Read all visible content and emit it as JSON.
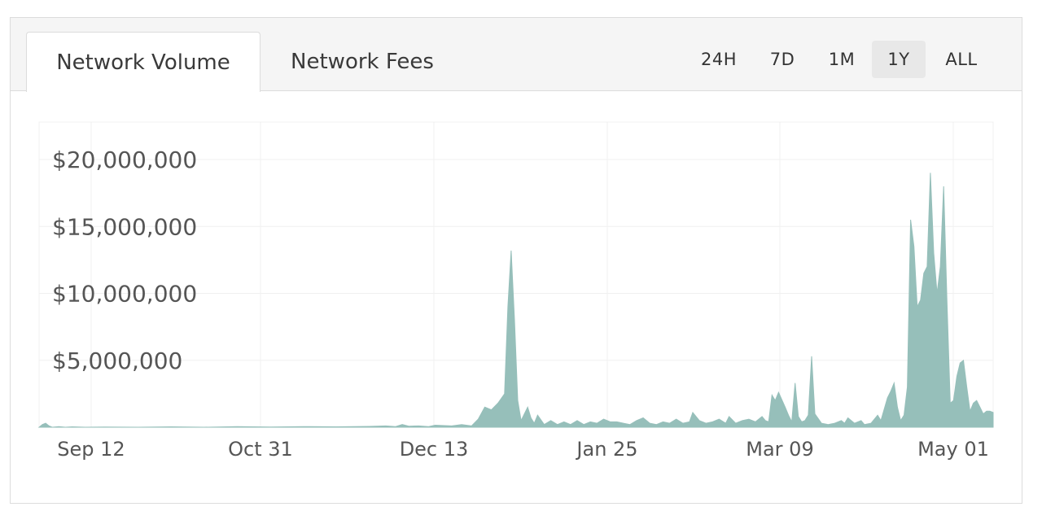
{
  "tabs": [
    {
      "label": "Network Volume",
      "active": true
    },
    {
      "label": "Network Fees",
      "active": false
    }
  ],
  "ranges": [
    {
      "label": "24H",
      "active": false
    },
    {
      "label": "7D",
      "active": false
    },
    {
      "label": "1M",
      "active": false
    },
    {
      "label": "1Y",
      "active": true
    },
    {
      "label": "ALL",
      "active": false
    }
  ],
  "colors": {
    "area": "#96bfba",
    "grid": "#f0f0f0"
  },
  "chart_data": {
    "type": "area",
    "title": "",
    "xlabel": "",
    "ylabel": "",
    "x_start": "Aug 20",
    "x_end": "May 06",
    "x_ticks": [
      "Sep 12",
      "Oct 31",
      "Dec 13",
      "Jan 25",
      "Mar 09",
      "May 01"
    ],
    "y_ticks": [
      "$5,000,000",
      "$10,000,000",
      "$15,000,000",
      "$20,000,000"
    ],
    "ylim": [
      0,
      22000000
    ],
    "grid": true,
    "series": [
      {
        "values": [
          [
            0,
            0
          ],
          [
            1,
            200000
          ],
          [
            2,
            300000
          ],
          [
            3,
            100000
          ],
          [
            4,
            0
          ],
          [
            6,
            50000
          ],
          [
            8,
            0
          ],
          [
            10,
            30000
          ],
          [
            14,
            0
          ],
          [
            20,
            20000
          ],
          [
            30,
            0
          ],
          [
            40,
            30000
          ],
          [
            50,
            0
          ],
          [
            60,
            40000
          ],
          [
            70,
            20000
          ],
          [
            80,
            50000
          ],
          [
            90,
            30000
          ],
          [
            100,
            60000
          ],
          [
            105,
            100000
          ],
          [
            108,
            50000
          ],
          [
            110,
            200000
          ],
          [
            112,
            80000
          ],
          [
            115,
            100000
          ],
          [
            118,
            50000
          ],
          [
            120,
            150000
          ],
          [
            125,
            100000
          ],
          [
            128,
            200000
          ],
          [
            131,
            100000
          ],
          [
            133,
            600000
          ],
          [
            135,
            1500000
          ],
          [
            137,
            1300000
          ],
          [
            139,
            1800000
          ],
          [
            141,
            2500000
          ],
          [
            142,
            9000000
          ],
          [
            143,
            13200000
          ],
          [
            144,
            8000000
          ],
          [
            145,
            2000000
          ],
          [
            146,
            500000
          ],
          [
            148,
            1500000
          ],
          [
            149,
            700000
          ],
          [
            150,
            300000
          ],
          [
            151,
            900000
          ],
          [
            153,
            200000
          ],
          [
            155,
            500000
          ],
          [
            157,
            200000
          ],
          [
            159,
            400000
          ],
          [
            161,
            200000
          ],
          [
            163,
            500000
          ],
          [
            165,
            200000
          ],
          [
            167,
            400000
          ],
          [
            169,
            300000
          ],
          [
            171,
            600000
          ],
          [
            173,
            400000
          ],
          [
            175,
            400000
          ],
          [
            177,
            300000
          ],
          [
            179,
            200000
          ],
          [
            181,
            500000
          ],
          [
            183,
            700000
          ],
          [
            185,
            300000
          ],
          [
            187,
            200000
          ],
          [
            189,
            400000
          ],
          [
            191,
            300000
          ],
          [
            193,
            600000
          ],
          [
            195,
            300000
          ],
          [
            197,
            400000
          ],
          [
            198,
            1100000
          ],
          [
            200,
            500000
          ],
          [
            202,
            300000
          ],
          [
            204,
            400000
          ],
          [
            206,
            600000
          ],
          [
            208,
            300000
          ],
          [
            209,
            800000
          ],
          [
            211,
            300000
          ],
          [
            213,
            500000
          ],
          [
            215,
            600000
          ],
          [
            217,
            400000
          ],
          [
            219,
            800000
          ],
          [
            220,
            500000
          ],
          [
            221,
            400000
          ],
          [
            222,
            2400000
          ],
          [
            223,
            2000000
          ],
          [
            224,
            2600000
          ],
          [
            226,
            1500000
          ],
          [
            227,
            900000
          ],
          [
            228,
            400000
          ],
          [
            229,
            3300000
          ],
          [
            230,
            800000
          ],
          [
            231,
            400000
          ],
          [
            232,
            500000
          ],
          [
            233,
            900000
          ],
          [
            234,
            5300000
          ],
          [
            235,
            1000000
          ],
          [
            237,
            300000
          ],
          [
            239,
            200000
          ],
          [
            241,
            300000
          ],
          [
            243,
            500000
          ],
          [
            244,
            300000
          ],
          [
            245,
            700000
          ],
          [
            247,
            300000
          ],
          [
            249,
            500000
          ],
          [
            250,
            200000
          ],
          [
            252,
            300000
          ],
          [
            254,
            900000
          ],
          [
            255,
            500000
          ],
          [
            257,
            2200000
          ],
          [
            258,
            2700000
          ],
          [
            259,
            3300000
          ],
          [
            260,
            1500000
          ],
          [
            261,
            500000
          ],
          [
            262,
            900000
          ],
          [
            263,
            3000000
          ],
          [
            264,
            15500000
          ],
          [
            265,
            13500000
          ],
          [
            266,
            9000000
          ],
          [
            267,
            9500000
          ],
          [
            268,
            11500000
          ],
          [
            269,
            12000000
          ],
          [
            270,
            19000000
          ],
          [
            271,
            13000000
          ],
          [
            272,
            10000000
          ],
          [
            273,
            12000000
          ],
          [
            274,
            18000000
          ],
          [
            275,
            9500000
          ],
          [
            276,
            1800000
          ],
          [
            277,
            2000000
          ],
          [
            278,
            3800000
          ],
          [
            279,
            4800000
          ],
          [
            280,
            5000000
          ],
          [
            281,
            3000000
          ],
          [
            282,
            1200000
          ],
          [
            283,
            1800000
          ],
          [
            284,
            2000000
          ],
          [
            285,
            1500000
          ],
          [
            286,
            1000000
          ],
          [
            287,
            1200000
          ],
          [
            288,
            1200000
          ],
          [
            289,
            1100000
          ]
        ]
      }
    ]
  }
}
